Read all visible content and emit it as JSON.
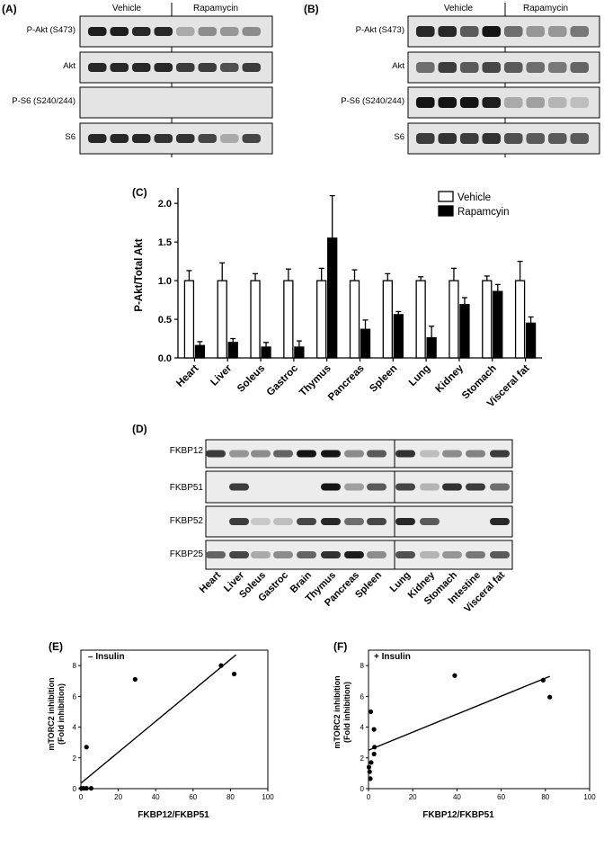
{
  "panelA": {
    "label": "(A)",
    "groups": [
      "Vehicle",
      "Rapamycin"
    ],
    "rows": [
      "P-Akt (S473)",
      "Akt",
      "P-S6 (S240/244)",
      "S6"
    ],
    "intensity": [
      [
        0.9,
        0.9,
        0.85,
        0.85,
        0.2,
        0.35,
        0.3,
        0.35
      ],
      [
        0.85,
        0.85,
        0.85,
        0.85,
        0.75,
        0.75,
        0.65,
        0.75
      ],
      [
        0.0,
        0.0,
        0.0,
        0.0,
        0.0,
        0.0,
        0.0,
        0.0
      ],
      [
        0.85,
        0.85,
        0.85,
        0.8,
        0.8,
        0.7,
        0.2,
        0.7
      ]
    ]
  },
  "panelB": {
    "label": "(B)",
    "groups": [
      "Vehicle",
      "Rapamycin"
    ],
    "rows": [
      "P-Akt (S473)",
      "Akt",
      "P-S6 (S240/244)",
      "S6"
    ],
    "intensity": [
      [
        0.85,
        0.85,
        0.6,
        0.95,
        0.5,
        0.3,
        0.3,
        0.45
      ],
      [
        0.5,
        0.75,
        0.6,
        0.7,
        0.6,
        0.5,
        0.45,
        0.55
      ],
      [
        0.95,
        0.95,
        0.95,
        0.9,
        0.2,
        0.25,
        0.15,
        0.1
      ],
      [
        0.75,
        0.8,
        0.75,
        0.8,
        0.65,
        0.6,
        0.6,
        0.6
      ]
    ]
  },
  "chart_data": [
    {
      "panel": "(C)",
      "type": "bar",
      "categories": [
        "Heart",
        "Liver",
        "Soleus",
        "Gastroc",
        "Thymus",
        "Pancreas",
        "Spleen",
        "Lung",
        "Kidney",
        "Stomach",
        "Visceral fat"
      ],
      "series": [
        {
          "name": "Vehicle",
          "values": [
            1,
            1,
            1,
            1,
            1,
            1,
            1,
            1,
            1,
            1,
            1
          ],
          "errors": [
            0.13,
            0.23,
            0.09,
            0.15,
            0.16,
            0.14,
            0.09,
            0.05,
            0.16,
            0.06,
            0.25
          ]
        },
        {
          "name": "Rapamcyin",
          "values": [
            0.16,
            0.2,
            0.14,
            0.14,
            1.55,
            0.37,
            0.56,
            0.26,
            0.69,
            0.86,
            0.45
          ],
          "errors": [
            0.05,
            0.05,
            0.06,
            0.08,
            0.55,
            0.12,
            0.04,
            0.15,
            0.09,
            0.09,
            0.08
          ]
        }
      ],
      "ylabel": "P-Akt/Total  Akt",
      "yticks": [
        "0.0",
        "0.5",
        "1.0",
        "1.5",
        "2.0"
      ],
      "ylim": [
        0,
        2.2
      ]
    },
    {
      "panel": "(E)",
      "type": "scatter",
      "annotation": "– Insulin",
      "xlabel": "FKBP12/FKBP51",
      "ylabel": [
        "mTORC2 inhibition",
        "(Fold inhibition)"
      ],
      "xticks": [
        "0",
        "20",
        "40",
        "60",
        "80",
        "100"
      ],
      "yticks": [
        "0",
        "2",
        "4",
        "6",
        "8"
      ],
      "xlim": [
        0,
        100
      ],
      "ylim": [
        0,
        9
      ],
      "points": [
        [
          0.3,
          0.02
        ],
        [
          1.5,
          0.02
        ],
        [
          3,
          0.02
        ],
        [
          5.5,
          0.02
        ],
        [
          3,
          2.7
        ],
        [
          29,
          7.1
        ],
        [
          75,
          8.0
        ],
        [
          82,
          7.45
        ]
      ],
      "fit": [
        [
          0,
          0.35
        ],
        [
          83,
          8.7
        ]
      ]
    },
    {
      "panel": "(F)",
      "type": "scatter",
      "annotation": "+ Insulin",
      "xlabel": "FKBP12/FKBP51",
      "ylabel": [
        "mTORC2 inhibition",
        "(Fold inhibition)"
      ],
      "xticks": [
        "0",
        "20",
        "40",
        "60",
        "80",
        "100"
      ],
      "yticks": [
        "0",
        "2",
        "4",
        "6",
        "8"
      ],
      "xlim": [
        0,
        100
      ],
      "ylim": [
        0,
        9
      ],
      "points": [
        [
          0.2,
          1.4
        ],
        [
          0.5,
          1.1
        ],
        [
          0.8,
          0.65
        ],
        [
          1,
          5.0
        ],
        [
          1.2,
          1.7
        ],
        [
          2.5,
          2.25
        ],
        [
          2.5,
          3.85
        ],
        [
          2.7,
          2.7
        ],
        [
          39,
          7.35
        ],
        [
          79,
          7.05
        ],
        [
          82,
          5.95
        ]
      ],
      "fit": [
        [
          0,
          2.5
        ],
        [
          82,
          7.3
        ]
      ]
    }
  ],
  "panelD": {
    "label": "(D)",
    "rows": [
      "FKBP12",
      "FKBP51",
      "FKBP52",
      "FKBP25"
    ],
    "tissues": [
      "Heart",
      "Liver",
      "Soleus",
      "Gastroc",
      "Brain",
      "Thymus",
      "Pancreas",
      "Spleen",
      "Lung",
      "Kidney",
      "Stomach",
      "Intestine",
      "Visceral fat"
    ],
    "intensity": [
      [
        0.75,
        0.3,
        0.35,
        0.55,
        0.95,
        0.95,
        0.35,
        0.6,
        0.8,
        0.1,
        0.35,
        0.4,
        0.75
      ],
      [
        0.0,
        0.75,
        0.0,
        0.0,
        0.0,
        0.95,
        0.25,
        0.6,
        0.7,
        0.15,
        0.8,
        0.75,
        0.5
      ],
      [
        0.0,
        0.75,
        0.05,
        0.1,
        0.7,
        0.85,
        0.5,
        0.7,
        0.85,
        0.6,
        0.0,
        0.0,
        0.85
      ],
      [
        0.55,
        0.7,
        0.2,
        0.35,
        0.55,
        0.8,
        0.9,
        0.35,
        0.65,
        0.15,
        0.3,
        0.45,
        0.6
      ]
    ]
  }
}
